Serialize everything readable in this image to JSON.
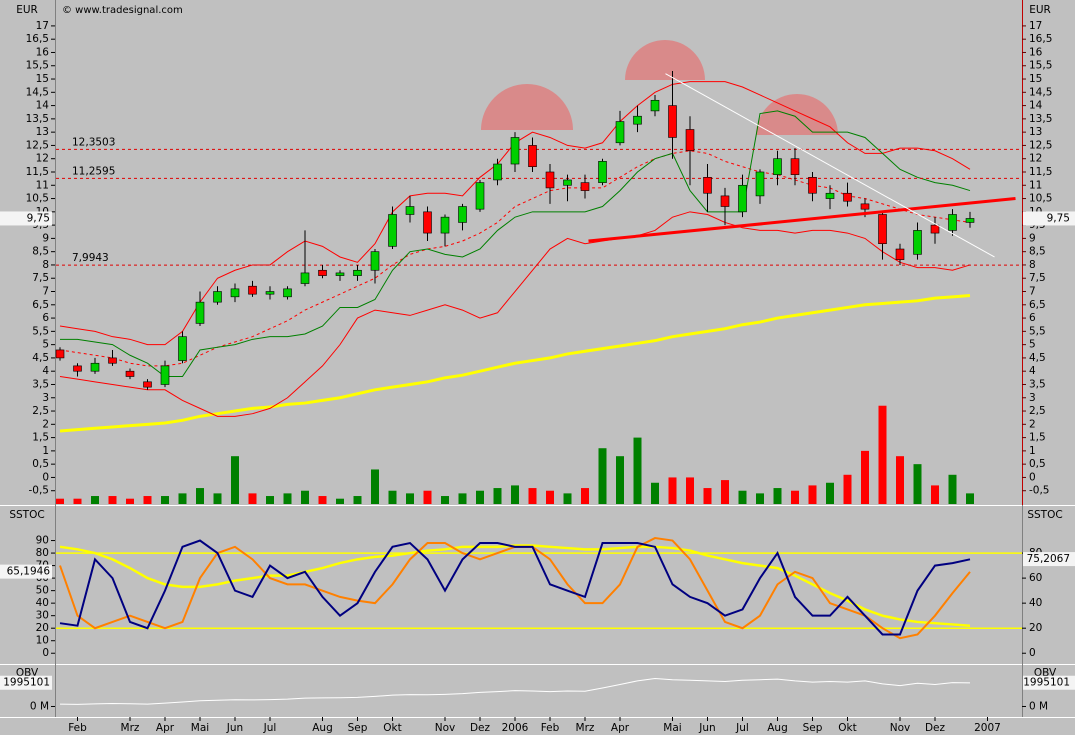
{
  "chart_data": [
    {
      "type": "candlestick",
      "axis_label": "EUR",
      "copyright": "© www.tradesignal.com",
      "up_color": "#00d000",
      "down_color": "#ff0000",
      "ylim": [
        -1,
        17.9
      ],
      "yticks": [
        {
          "value": -0.5,
          "label": "-0,5"
        },
        0,
        {
          "value": 0.5,
          "label": "0,5"
        },
        1,
        {
          "value": 1.5,
          "label": "1,5"
        },
        2,
        {
          "value": 2.5,
          "label": "2,5"
        },
        3,
        {
          "value": 3.5,
          "label": "3,5"
        },
        4,
        {
          "value": 4.5,
          "label": "4,5"
        },
        5,
        {
          "value": 5.5,
          "label": "5,5"
        },
        6,
        {
          "value": 6.5,
          "label": "6,5"
        },
        7,
        {
          "value": 7.5,
          "label": "7,5"
        },
        8,
        {
          "value": 8.5,
          "label": "8,5"
        },
        9,
        {
          "value": 9.5,
          "label": "9,5"
        },
        10,
        {
          "value": 10.5,
          "label": "10,5"
        },
        11,
        {
          "value": 11.5,
          "label": "11,5"
        },
        12,
        {
          "value": 12.5,
          "label": "12,5"
        },
        13,
        {
          "value": 13.5,
          "label": "13,5"
        },
        14,
        {
          "value": 14.5,
          "label": "14,5"
        },
        15,
        {
          "value": 15.5,
          "label": "15,5"
        },
        16,
        {
          "value": 16.5,
          "label": "16,5"
        },
        17
      ],
      "open": [
        4.8,
        4.2,
        4.0,
        4.5,
        4.0,
        3.6,
        3.5,
        4.4,
        5.8,
        6.6,
        6.8,
        7.2,
        6.9,
        6.8,
        7.3,
        7.8,
        7.6,
        7.6,
        7.8,
        8.7,
        9.9,
        10.0,
        9.2,
        9.6,
        10.1,
        11.2,
        11.8,
        12.5,
        11.5,
        11.0,
        11.1,
        11.1,
        12.6,
        13.3,
        13.8,
        14.0,
        13.1,
        11.3,
        10.6,
        10.0,
        10.6,
        11.4,
        12.0,
        11.3,
        10.5,
        10.7,
        10.3,
        9.9,
        8.6,
        8.4,
        9.5,
        9.3,
        9.6,
        null
      ],
      "high": [
        4.9,
        4.3,
        4.5,
        4.8,
        4.1,
        3.7,
        4.4,
        5.5,
        7.0,
        7.2,
        7.3,
        7.4,
        7.2,
        7.2,
        9.3,
        8.0,
        7.8,
        8.0,
        8.6,
        10.2,
        10.6,
        10.2,
        9.9,
        10.3,
        11.2,
        12.0,
        13.0,
        12.8,
        11.8,
        11.4,
        11.4,
        12.0,
        13.8,
        14.0,
        14.4,
        15.3,
        13.6,
        11.8,
        10.9,
        11.4,
        11.6,
        12.3,
        12.4,
        11.5,
        11.0,
        11.1,
        10.5,
        10.0,
        8.8,
        9.6,
        9.8,
        10.1,
        10.0,
        null
      ],
      "low": [
        4.4,
        3.8,
        3.9,
        4.2,
        3.7,
        3.3,
        3.4,
        4.3,
        5.7,
        6.5,
        6.6,
        6.8,
        6.7,
        6.7,
        7.2,
        7.5,
        7.4,
        7.4,
        7.3,
        8.6,
        9.6,
        8.9,
        8.7,
        9.3,
        10.0,
        11.0,
        11.5,
        11.5,
        10.3,
        10.4,
        10.5,
        11.0,
        12.5,
        13.0,
        13.6,
        12.0,
        11.0,
        10.0,
        9.5,
        9.8,
        10.3,
        11.0,
        11.0,
        10.4,
        10.1,
        10.2,
        9.8,
        8.2,
        8.0,
        8.2,
        8.8,
        9.1,
        9.4,
        null
      ],
      "close": [
        4.5,
        4.0,
        4.3,
        4.3,
        3.8,
        3.4,
        4.2,
        5.3,
        6.6,
        7.0,
        7.1,
        6.9,
        7.0,
        7.1,
        7.7,
        7.6,
        7.7,
        7.8,
        8.5,
        9.9,
        10.2,
        9.2,
        9.8,
        10.2,
        11.1,
        11.8,
        12.8,
        11.7,
        10.9,
        11.2,
        10.8,
        11.9,
        13.4,
        13.6,
        14.2,
        12.8,
        12.3,
        10.7,
        10.2,
        11.0,
        11.5,
        12.0,
        11.4,
        10.7,
        10.7,
        10.4,
        10.1,
        8.8,
        8.2,
        9.3,
        9.2,
        9.9,
        9.75,
        null
      ],
      "volume": [
        -0.8,
        -0.8,
        -0.7,
        -0.7,
        -0.8,
        -0.7,
        -0.7,
        -0.6,
        -0.4,
        -0.6,
        0.8,
        -0.6,
        -0.7,
        -0.6,
        -0.5,
        -0.7,
        -0.8,
        -0.7,
        0.3,
        -0.5,
        -0.6,
        -0.5,
        -0.7,
        -0.6,
        -0.5,
        -0.4,
        -0.3,
        -0.4,
        -0.5,
        -0.6,
        -0.4,
        1.1,
        0.8,
        1.5,
        -0.2,
        0.0,
        0.0,
        -0.4,
        -0.1,
        -0.5,
        -0.6,
        -0.4,
        -0.5,
        -0.3,
        -0.2,
        0.1,
        1.0,
        2.7,
        0.8,
        0.5,
        -0.3,
        0.1,
        -0.6,
        null
      ],
      "lines": [
        {
          "color": "#ffff00",
          "width": 3,
          "style": "solid",
          "values": [
            1.75,
            1.8,
            1.85,
            1.9,
            1.95,
            2.0,
            2.05,
            2.15,
            2.3,
            2.4,
            2.5,
            2.6,
            2.65,
            2.75,
            2.8,
            2.9,
            3.0,
            3.15,
            3.3,
            3.4,
            3.5,
            3.6,
            3.75,
            3.85,
            4.0,
            4.15,
            4.3,
            4.4,
            4.5,
            4.65,
            4.75,
            4.85,
            4.95,
            5.05,
            5.15,
            5.3,
            5.4,
            5.5,
            5.6,
            5.75,
            5.85,
            6.0,
            6.1,
            6.2,
            6.3,
            6.4,
            6.5,
            6.55,
            6.6,
            6.65,
            6.75,
            6.8,
            6.85,
            null
          ]
        },
        {
          "color": "#ff0000",
          "width": 1,
          "style": "solid",
          "values": [
            5.7,
            5.6,
            5.5,
            5.3,
            5.2,
            5.0,
            5.0,
            5.5,
            6.6,
            7.5,
            7.8,
            8.0,
            8.0,
            8.5,
            8.9,
            8.7,
            8.3,
            8.1,
            8.8,
            10.0,
            10.6,
            10.7,
            10.7,
            10.6,
            11.3,
            11.8,
            12.6,
            13.0,
            12.8,
            12.5,
            12.4,
            12.6,
            13.4,
            14.0,
            14.5,
            14.8,
            14.9,
            14.9,
            14.9,
            14.7,
            14.4,
            14.1,
            13.8,
            13.5,
            13.2,
            12.6,
            12.2,
            12.2,
            12.4,
            12.4,
            12.3,
            12.0,
            11.6,
            null
          ]
        },
        {
          "color": "#ff0000",
          "width": 1,
          "style": "solid",
          "values": [
            3.8,
            3.7,
            3.6,
            3.5,
            3.4,
            3.3,
            3.3,
            2.9,
            2.6,
            2.3,
            2.3,
            2.4,
            2.6,
            3.0,
            3.6,
            4.2,
            5.0,
            6.0,
            6.3,
            6.2,
            6.1,
            6.3,
            6.5,
            6.3,
            6.0,
            6.2,
            7.0,
            7.8,
            8.6,
            9.0,
            8.8,
            8.9,
            9.0,
            9.1,
            9.3,
            9.8,
            10.0,
            9.9,
            9.6,
            9.4,
            9.3,
            9.3,
            9.2,
            9.3,
            9.3,
            9.2,
            9.0,
            8.5,
            8.1,
            7.9,
            7.9,
            7.8,
            8.0,
            null
          ]
        },
        {
          "color": "#ff0000",
          "width": 1,
          "style": "dashed",
          "values": [
            4.8,
            4.7,
            4.6,
            4.5,
            4.3,
            4.2,
            4.2,
            4.3,
            4.6,
            4.9,
            5.1,
            5.3,
            5.6,
            5.9,
            6.3,
            6.6,
            6.9,
            7.2,
            7.5,
            8.0,
            8.4,
            8.6,
            8.7,
            8.9,
            9.2,
            9.6,
            10.2,
            10.5,
            10.8,
            10.9,
            10.9,
            10.9,
            11.3,
            11.7,
            12.0,
            12.2,
            12.3,
            12.2,
            11.9,
            11.7,
            11.5,
            11.4,
            11.2,
            11.0,
            10.9,
            10.6,
            10.5,
            10.3,
            10.1,
            9.9,
            9.8,
            9.7,
            9.6,
            null
          ]
        },
        {
          "color": "#008000",
          "width": 1,
          "style": "solid",
          "values": [
            5.2,
            5.2,
            5.1,
            5.0,
            4.6,
            4.3,
            3.8,
            3.8,
            4.8,
            4.9,
            5.0,
            5.2,
            5.3,
            5.3,
            5.4,
            5.7,
            6.4,
            6.4,
            6.7,
            7.8,
            8.5,
            8.6,
            8.4,
            8.3,
            8.6,
            9.3,
            9.8,
            10.0,
            10.0,
            10.0,
            10.0,
            10.2,
            10.8,
            11.5,
            12.0,
            12.2,
            10.8,
            10.0,
            10.0,
            10.0,
            13.7,
            13.8,
            13.6,
            13.0,
            13.0,
            13.0,
            12.8,
            12.2,
            11.6,
            11.3,
            11.1,
            11.0,
            10.8,
            null
          ]
        }
      ],
      "levels": [
        {
          "value": 12.3503,
          "label": "12,3503"
        },
        {
          "value": 11.2595,
          "label": "11,2595"
        },
        {
          "value": 7.9943,
          "label": "7,9943"
        }
      ],
      "trendlines": [
        {
          "color": "#ff0000",
          "width": 3,
          "x": [
            30.2,
            54.6
          ],
          "y": [
            8.9,
            10.5
          ]
        },
        {
          "color": "#ffffff",
          "width": 1,
          "x": [
            34.6,
            53.4
          ],
          "y": [
            15.2,
            8.3
          ]
        }
      ],
      "markers": [
        {
          "value": 9.75,
          "label": "9,75",
          "side": "both"
        }
      ]
    },
    {
      "type": "line",
      "axis_label": "SSTOC",
      "ylim": [
        -7,
        116
      ],
      "yticks": [
        0,
        10,
        20,
        30,
        40,
        50,
        60,
        70,
        80,
        90
      ],
      "y2ticks": [
        0,
        20,
        40,
        60,
        80
      ],
      "levels": [
        20,
        80
      ],
      "level_color": "#ffff00",
      "series": [
        {
          "color": "#ffff00",
          "width": 2.5,
          "values": [
            85,
            83,
            80,
            75,
            68,
            60,
            55,
            53,
            53,
            55,
            58,
            60,
            62,
            62,
            65,
            68,
            72,
            75,
            77,
            78,
            80,
            82,
            83,
            85,
            85,
            85,
            86,
            86,
            85,
            84,
            83,
            83,
            84,
            85,
            85,
            84,
            82,
            78,
            75,
            72,
            70,
            68,
            62,
            55,
            48,
            42,
            35,
            30,
            27,
            25,
            24,
            23,
            22,
            null
          ]
        },
        {
          "color": "#ff8000",
          "width": 2,
          "values": [
            70,
            30,
            20,
            25,
            30,
            25,
            20,
            25,
            60,
            80,
            85,
            75,
            60,
            55,
            55,
            50,
            45,
            42,
            40,
            55,
            75,
            88,
            88,
            80,
            75,
            80,
            85,
            85,
            75,
            55,
            40,
            40,
            55,
            85,
            92,
            90,
            75,
            50,
            25,
            20,
            30,
            55,
            65,
            60,
            40,
            35,
            30,
            20,
            12,
            15,
            30,
            48,
            65,
            null
          ]
        },
        {
          "color": "#000080",
          "width": 2,
          "values": [
            24,
            22,
            75,
            60,
            25,
            20,
            50,
            85,
            90,
            80,
            50,
            45,
            70,
            60,
            65,
            45,
            30,
            40,
            65,
            85,
            88,
            75,
            50,
            75,
            88,
            88,
            85,
            85,
            55,
            50,
            45,
            88,
            88,
            88,
            85,
            55,
            45,
            40,
            30,
            35,
            60,
            80,
            45,
            30,
            30,
            45,
            30,
            15,
            15,
            50,
            70,
            72,
            75,
            null
          ]
        }
      ],
      "markers": [
        {
          "value": 65.1946,
          "label": "65,1946",
          "side": "left"
        },
        {
          "value": 75.2067,
          "label": "75,2067",
          "side": "right"
        }
      ]
    },
    {
      "type": "line",
      "axis_label": "OBV",
      "ylim": [
        -800000,
        3400000
      ],
      "yticks": [
        {
          "value": 0,
          "label": "0 M"
        }
      ],
      "series": [
        {
          "color": "#ffffff",
          "width": 1,
          "values": [
            200000,
            180000,
            220000,
            250000,
            230000,
            200000,
            280000,
            380000,
            480000,
            520000,
            560000,
            550000,
            580000,
            620000,
            700000,
            720000,
            730000,
            760000,
            850000,
            950000,
            1000000,
            980000,
            1020000,
            1080000,
            1180000,
            1250000,
            1330000,
            1300000,
            1250000,
            1300000,
            1280000,
            1550000,
            1850000,
            2150000,
            2350000,
            2250000,
            2200000,
            2150000,
            2100000,
            2200000,
            2250000,
            2300000,
            2150000,
            2050000,
            2100000,
            2050000,
            2150000,
            1900000,
            1750000,
            1950000,
            1850000,
            2000000,
            1980000,
            null
          ]
        }
      ],
      "markers": [
        {
          "value": 1995101,
          "label": "1995101",
          "side": "both"
        }
      ],
      "categories": [
        null,
        "Feb",
        null,
        null,
        "Mrz",
        null,
        "Apr",
        null,
        "Mai",
        null,
        "Jun",
        null,
        "Jul",
        null,
        null,
        "Aug",
        null,
        "Sep",
        null,
        "Okt",
        null,
        null,
        "Nov",
        null,
        "Dez",
        null,
        "2006",
        null,
        "Feb",
        null,
        "Mrz",
        null,
        "Apr",
        null,
        null,
        "Mai",
        null,
        "Jun",
        null,
        "Jul",
        null,
        "Aug",
        null,
        "Sep",
        null,
        "Okt",
        null,
        null,
        "Nov",
        null,
        "Dez",
        null,
        null,
        "2007"
      ]
    }
  ]
}
